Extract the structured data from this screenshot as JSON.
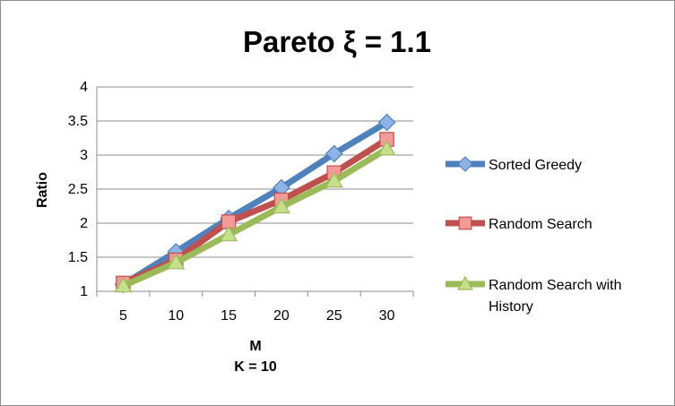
{
  "chart_data": {
    "type": "line",
    "title": "Pareto ξ = 1.1",
    "xlabel": "M",
    "xlabel_sub": "K = 10",
    "ylabel": "Ratio",
    "categories": [
      "5",
      "10",
      "15",
      "20",
      "25",
      "30"
    ],
    "ylim": [
      1,
      4
    ],
    "yticks": [
      "1",
      "1.5",
      "2",
      "2.5",
      "3",
      "3.5",
      "4"
    ],
    "grid": true,
    "legend_position": "right",
    "series": [
      {
        "name": "Sorted Greedy",
        "name_lines": [
          "Sorted Greedy"
        ],
        "values": [
          1.1,
          1.58,
          2.07,
          2.52,
          3.02,
          3.48
        ],
        "color": "#4f81bd",
        "marker": "diamond",
        "marker_fill": "#8fb3e6"
      },
      {
        "name": "Random Search",
        "name_lines": [
          "Random Search"
        ],
        "values": [
          1.12,
          1.46,
          2.02,
          2.34,
          2.74,
          3.23
        ],
        "color": "#c0504d",
        "marker": "square",
        "marker_fill": "#f39a98"
      },
      {
        "name": "Random Search with History",
        "name_lines": [
          " Random Search with",
          "History"
        ],
        "values": [
          1.08,
          1.42,
          1.83,
          2.24,
          2.62,
          3.09
        ],
        "color": "#9bbb59",
        "marker": "triangle",
        "marker_fill": "#c5e08c"
      }
    ]
  }
}
